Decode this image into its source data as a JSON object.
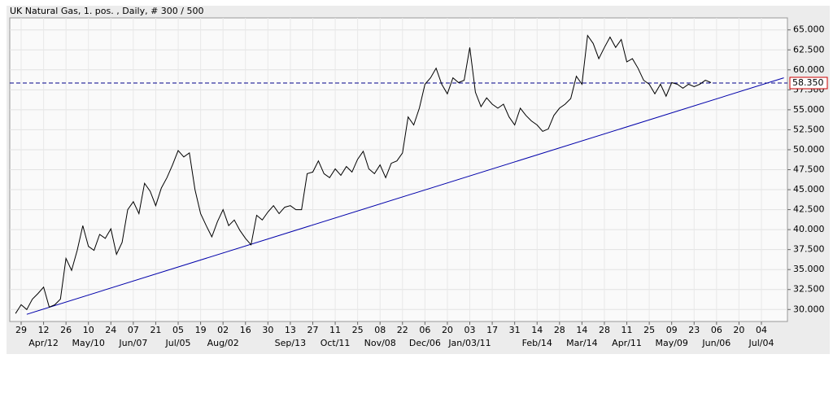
{
  "chart_data": {
    "type": "line",
    "title": "UK Natural Gas, 1. pos. , Daily, # 300 / 500",
    "categories": [
      null,
      "29",
      null,
      null,
      null,
      "12",
      null,
      null,
      null,
      "26",
      null,
      null,
      null,
      "10",
      null,
      null,
      null,
      "24",
      null,
      null,
      null,
      "07",
      null,
      null,
      null,
      "21",
      null,
      null,
      null,
      "05",
      null,
      null,
      null,
      "19",
      null,
      null,
      null,
      "02",
      null,
      null,
      null,
      "16",
      null,
      null,
      null,
      "30",
      null,
      null,
      null,
      "13",
      null,
      null,
      null,
      "27",
      null,
      null,
      null,
      "11",
      null,
      null,
      null,
      "25",
      null,
      null,
      null,
      "08",
      null,
      null,
      null,
      "22",
      null,
      null,
      null,
      "06",
      null,
      null,
      null,
      "20",
      null,
      null,
      null,
      "03",
      null,
      null,
      null,
      "17",
      null,
      null,
      null,
      "31",
      null,
      null,
      null,
      "14",
      null,
      null,
      null,
      "28",
      null,
      null,
      null,
      "14",
      null,
      null,
      null,
      "28",
      null,
      null,
      null,
      "11",
      null,
      null,
      null,
      "25",
      null,
      null,
      null,
      "09",
      null,
      null,
      null,
      "23",
      null,
      null,
      null,
      "06",
      null,
      null,
      null,
      "20",
      null,
      null,
      null,
      "04",
      null,
      null,
      null,
      null
    ],
    "category_groups": [
      null,
      null,
      null,
      null,
      null,
      "Apr/12",
      null,
      null,
      null,
      null,
      null,
      null,
      null,
      "May/10",
      null,
      null,
      null,
      null,
      null,
      null,
      null,
      "Jun/07",
      null,
      null,
      null,
      null,
      null,
      null,
      null,
      "Jul/05",
      null,
      null,
      null,
      null,
      null,
      null,
      null,
      "Aug/02",
      null,
      null,
      null,
      null,
      null,
      null,
      null,
      null,
      null,
      null,
      null,
      "Sep/13",
      null,
      null,
      null,
      null,
      null,
      null,
      null,
      "Oct/11",
      null,
      null,
      null,
      null,
      null,
      null,
      null,
      "Nov/08",
      null,
      null,
      null,
      null,
      null,
      null,
      null,
      "Dec/06",
      null,
      null,
      null,
      null,
      null,
      null,
      null,
      "Jan/03/11",
      null,
      null,
      null,
      null,
      null,
      null,
      null,
      null,
      null,
      null,
      null,
      "Feb/14",
      null,
      null,
      null,
      null,
      null,
      null,
      null,
      "Mar/14",
      null,
      null,
      null,
      null,
      null,
      null,
      null,
      "Apr/11",
      null,
      null,
      null,
      null,
      null,
      null,
      null,
      "May/09",
      null,
      null,
      null,
      null,
      null,
      null,
      null,
      "Jun/06",
      null,
      null,
      null,
      null,
      null,
      null,
      null,
      "Jul/04",
      null,
      null,
      null,
      null
    ],
    "series": [
      {
        "color": "#000000",
        "values": [
          29.5,
          30.6,
          30.0,
          31.3,
          32.0,
          32.8,
          30.3,
          30.6,
          31.3,
          36.4,
          34.9,
          37.4,
          40.5,
          37.9,
          37.4,
          39.4,
          38.9,
          40.1,
          36.9,
          38.4,
          42.5,
          43.5,
          42.0,
          45.8,
          44.8,
          43.0,
          45.2,
          46.5,
          48.1,
          49.9,
          49.1,
          49.6,
          45.0,
          42.0,
          40.5,
          39.1,
          41.0,
          42.5,
          40.5,
          41.2,
          39.9,
          38.9,
          38.1,
          41.8,
          41.2,
          42.2,
          43.0,
          42.0,
          42.8,
          43.0,
          42.5,
          42.5,
          47.0,
          47.2,
          48.6,
          47.0,
          46.5,
          47.6,
          46.8,
          47.9,
          47.2,
          48.8,
          49.8,
          47.6,
          47.0,
          48.1,
          46.5,
          48.3,
          48.6,
          49.6,
          54.1,
          53.1,
          55.2,
          58.2,
          59.0,
          60.2,
          58.2,
          57.0,
          59.0,
          58.4,
          58.7,
          62.8,
          57.2,
          55.4,
          56.5,
          55.7,
          55.2,
          55.7,
          54.1,
          53.1,
          55.2,
          54.3,
          53.6,
          53.1,
          52.3,
          52.6,
          54.3,
          55.2,
          55.7,
          56.4,
          59.2,
          58.2,
          64.3,
          63.3,
          61.4,
          62.8,
          64.1,
          62.8,
          63.8,
          61.0,
          61.4,
          60.2,
          58.7,
          58.2,
          57.0,
          58.2,
          56.7,
          58.4,
          58.2,
          57.7,
          58.2,
          57.9,
          58.2,
          58.7,
          58.4,
          null,
          null,
          null,
          null,
          null,
          null,
          null,
          null,
          null,
          null,
          null,
          null,
          null
        ]
      }
    ],
    "ylim": [
      28.5,
      66.5
    ],
    "yticks": [
      {
        "value": 30,
        "label": "30.000"
      },
      {
        "value": 32.5,
        "label": "32.500"
      },
      {
        "value": 35,
        "label": "35.000"
      },
      {
        "value": 37.5,
        "label": "37.500"
      },
      {
        "value": 40,
        "label": "40.000"
      },
      {
        "value": 42.5,
        "label": "42.500"
      },
      {
        "value": 45,
        "label": "45.000"
      },
      {
        "value": 47.5,
        "label": "47.500"
      },
      {
        "value": 50,
        "label": "50.000"
      },
      {
        "value": 52.5,
        "label": "52.500"
      },
      {
        "value": 55,
        "label": "55.000"
      },
      {
        "value": 57.5,
        "label": "57.500"
      },
      {
        "value": 60,
        "label": "60.000"
      },
      {
        "value": 62.5,
        "label": "62.500"
      },
      {
        "value": 65,
        "label": "65.000"
      }
    ],
    "grid": true,
    "reference_line": {
      "value": 58.35,
      "label": "58.350",
      "color": "#00008b",
      "label_color": "#cc0000"
    },
    "trendline": {
      "start": [
        2,
        29.4
      ],
      "end": [
        137,
        59.0
      ],
      "color": "#0000aa"
    }
  }
}
